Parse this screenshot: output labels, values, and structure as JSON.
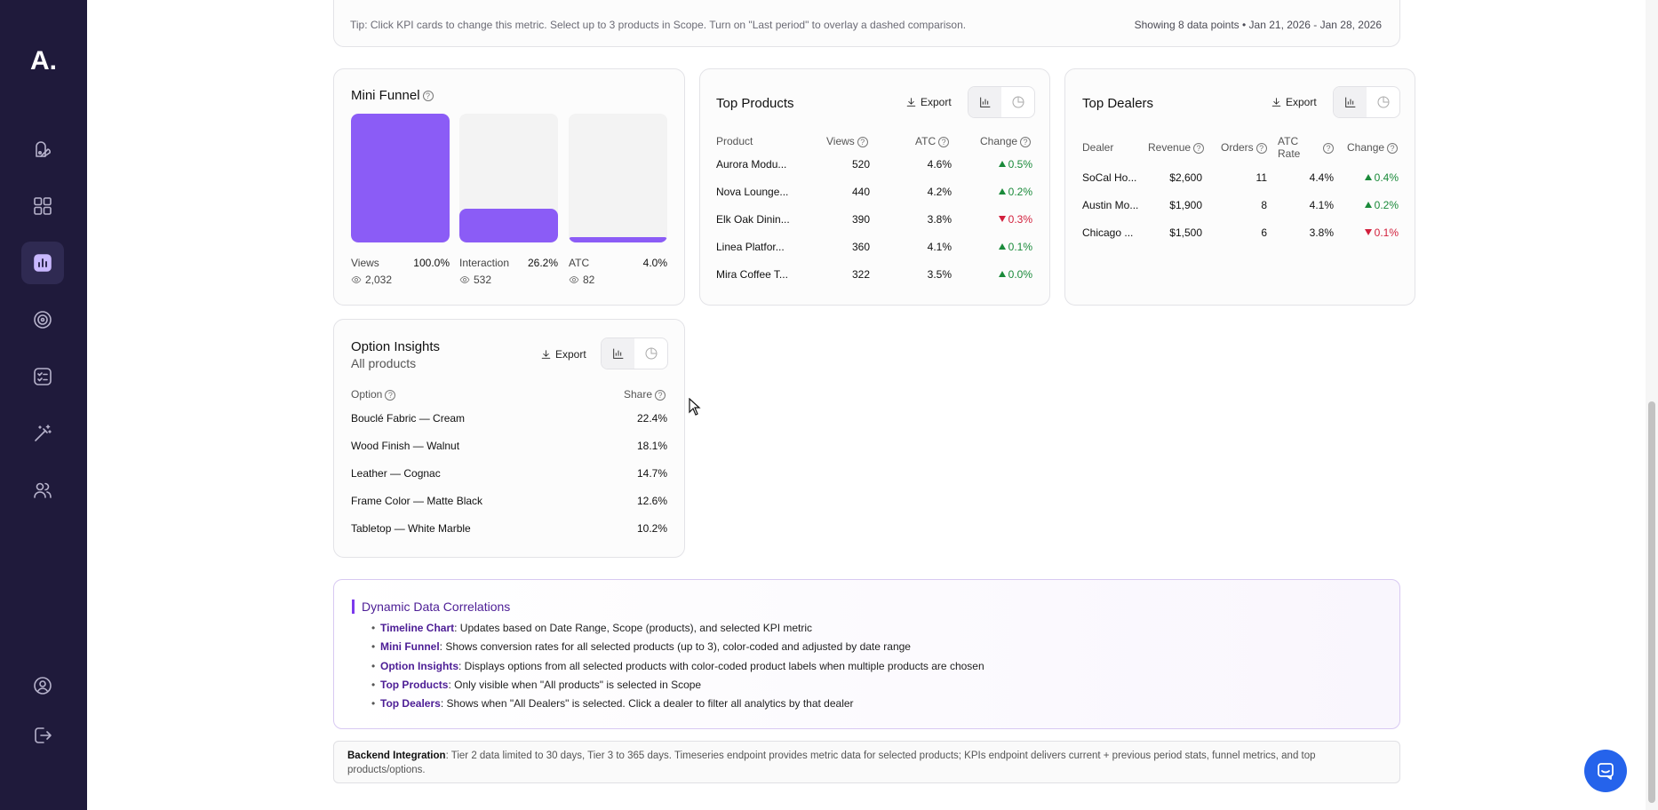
{
  "app": {
    "logo": "A."
  },
  "sidebar": {
    "items": [
      {
        "icon": "palette-icon",
        "active": false
      },
      {
        "icon": "grid-icon",
        "active": false
      },
      {
        "icon": "analytics-icon",
        "active": true
      },
      {
        "icon": "target-icon",
        "active": false
      },
      {
        "icon": "checklist-icon",
        "active": false
      },
      {
        "icon": "magic-wand-icon",
        "active": false
      },
      {
        "icon": "users-icon",
        "active": false
      }
    ],
    "bottom": [
      {
        "icon": "account-icon"
      },
      {
        "icon": "logout-icon"
      }
    ]
  },
  "tip": {
    "text": "Tip: Click KPI cards to change this metric. Select up to 3 products in Scope. Turn on \"Last period\" to overlay a dashed comparison.",
    "range": "Showing 8 data points • Jan 21, 2026 - Jan 28, 2026"
  },
  "funnel": {
    "title": "Mini Funnel",
    "stages": [
      {
        "label": "Views",
        "pct": "100.0%",
        "count": "2,032",
        "fill": 1.0
      },
      {
        "label": "Interaction",
        "pct": "26.2%",
        "count": "532",
        "fill": 0.262
      },
      {
        "label": "ATC",
        "pct": "4.0%",
        "count": "82",
        "fill": 0.04
      }
    ],
    "color": "#8b5cf6"
  },
  "top_products": {
    "title": "Top Products",
    "export": "Export",
    "headers": [
      "Product",
      "Views",
      "ATC",
      "Change"
    ],
    "rows": [
      {
        "product": "Aurora Modu...",
        "views": "520",
        "atc": "4.6%",
        "change": "0.5%",
        "dir": "up"
      },
      {
        "product": "Nova Lounge...",
        "views": "440",
        "atc": "4.2%",
        "change": "0.2%",
        "dir": "up"
      },
      {
        "product": "Elk Oak Dinin...",
        "views": "390",
        "atc": "3.8%",
        "change": "0.3%",
        "dir": "down"
      },
      {
        "product": "Linea Platfor...",
        "views": "360",
        "atc": "4.1%",
        "change": "0.1%",
        "dir": "up"
      },
      {
        "product": "Mira Coffee T...",
        "views": "322",
        "atc": "3.5%",
        "change": "0.0%",
        "dir": "up"
      }
    ]
  },
  "top_dealers": {
    "title": "Top Dealers",
    "export": "Export",
    "headers": [
      "Dealer",
      "Revenue",
      "Orders",
      "ATC Rate",
      "Change"
    ],
    "rows": [
      {
        "dealer": "SoCal Ho...",
        "revenue": "$2,600",
        "orders": "11",
        "atc": "4.4%",
        "change": "0.4%",
        "dir": "up"
      },
      {
        "dealer": "Austin Mo...",
        "revenue": "$1,900",
        "orders": "8",
        "atc": "4.1%",
        "change": "0.2%",
        "dir": "up"
      },
      {
        "dealer": "Chicago ...",
        "revenue": "$1,500",
        "orders": "6",
        "atc": "3.8%",
        "change": "0.1%",
        "dir": "down"
      }
    ]
  },
  "option_insights": {
    "title": "Option Insights",
    "subtitle": "All products",
    "export": "Export",
    "headers": [
      "Option",
      "Share"
    ],
    "rows": [
      {
        "option": "Bouclé Fabric — Cream",
        "share": "22.4%"
      },
      {
        "option": "Wood Finish — Walnut",
        "share": "18.1%"
      },
      {
        "option": "Leather — Cognac",
        "share": "14.7%"
      },
      {
        "option": "Frame Color — Matte Black",
        "share": "12.6%"
      },
      {
        "option": "Tabletop — White Marble",
        "share": "10.2%"
      }
    ]
  },
  "correlations": {
    "title": "Dynamic Data Correlations",
    "items": [
      {
        "label": "Timeline Chart",
        "text": ": Updates based on Date Range, Scope (products), and selected KPI metric"
      },
      {
        "label": "Mini Funnel",
        "text": ": Shows conversion rates for all selected products (up to 3), color-coded and adjusted by date range"
      },
      {
        "label": "Option Insights",
        "text": ": Displays options from all selected products with color-coded product labels when multiple products are chosen"
      },
      {
        "label": "Top Products",
        "text": ": Only visible when \"All products\" is selected in Scope"
      },
      {
        "label": "Top Dealers",
        "text": ": Shows when \"All Dealers\" is selected. Click a dealer to filter all analytics by that dealer"
      }
    ]
  },
  "backend": {
    "label": "Backend Integration",
    "text": ": Tier 2 data limited to 30 days, Tier 3 to 365 days. Timeseries endpoint provides metric data for selected products; KPIs endpoint delivers current + previous period stats, funnel metrics, and top products/options."
  },
  "colors": {
    "sidebar": "#1f1a3b",
    "accent": "#8b5cf6",
    "up": "#1a8a3a",
    "down": "#d21f3c",
    "chat": "#2563eb"
  }
}
